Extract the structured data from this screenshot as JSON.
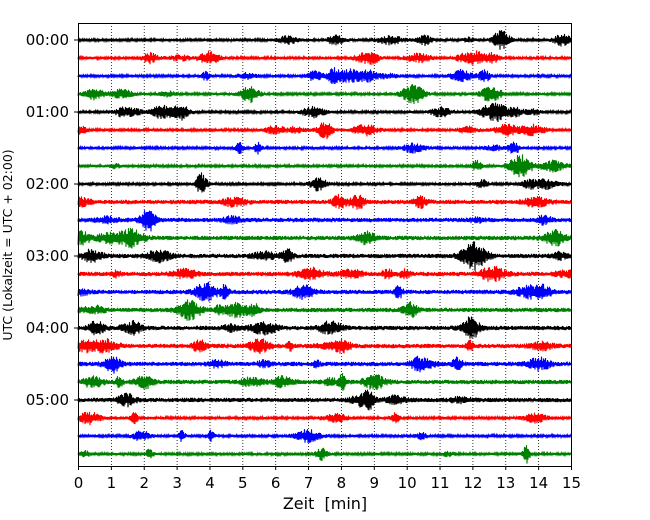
{
  "chart_data": {
    "type": "line",
    "chart_kind": "helicorder (stacked seismogram traces)",
    "xlabel": "Zeit  [min]",
    "ylabel": "UTC (Lokalzeit = UTC + 02:00)",
    "xlim": [
      0,
      15
    ],
    "x_ticks": [
      0,
      1,
      2,
      3,
      4,
      5,
      6,
      7,
      8,
      9,
      10,
      11,
      12,
      13,
      14,
      15
    ],
    "x_tick_labels": [
      "0",
      "1",
      "2",
      "3",
      "4",
      "5",
      "6",
      "7",
      "8",
      "9",
      "10",
      "11",
      "12",
      "13",
      "14",
      "15"
    ],
    "y_tick_labels": [
      "00:00",
      "01:00",
      "02:00",
      "03:00",
      "04:00",
      "05:00"
    ],
    "grid": {
      "vertical_dotted_per_minute": true,
      "horizontal": false
    },
    "trace_interval_minutes": 15,
    "trace_colors_cycle": [
      "#000000",
      "#ff0000",
      "#0000ff",
      "#008000"
    ],
    "traces": [
      {
        "start": "00:00",
        "color": "#000000"
      },
      {
        "start": "00:15",
        "color": "#ff0000"
      },
      {
        "start": "00:30",
        "color": "#0000ff"
      },
      {
        "start": "00:45",
        "color": "#008000"
      },
      {
        "start": "01:00",
        "color": "#000000"
      },
      {
        "start": "01:15",
        "color": "#ff0000"
      },
      {
        "start": "01:30",
        "color": "#0000ff"
      },
      {
        "start": "01:45",
        "color": "#008000"
      },
      {
        "start": "02:00",
        "color": "#000000"
      },
      {
        "start": "02:15",
        "color": "#ff0000"
      },
      {
        "start": "02:30",
        "color": "#0000ff"
      },
      {
        "start": "02:45",
        "color": "#008000"
      },
      {
        "start": "03:00",
        "color": "#000000"
      },
      {
        "start": "03:15",
        "color": "#ff0000"
      },
      {
        "start": "03:30",
        "color": "#0000ff"
      },
      {
        "start": "03:45",
        "color": "#008000"
      },
      {
        "start": "04:00",
        "color": "#000000"
      },
      {
        "start": "04:15",
        "color": "#ff0000"
      },
      {
        "start": "04:30",
        "color": "#0000ff"
      },
      {
        "start": "04:45",
        "color": "#008000"
      },
      {
        "start": "05:00",
        "color": "#000000"
      },
      {
        "start": "05:15",
        "color": "#ff0000"
      },
      {
        "start": "05:30",
        "color": "#0000ff"
      },
      {
        "start": "05:45",
        "color": "#008000"
      }
    ]
  }
}
